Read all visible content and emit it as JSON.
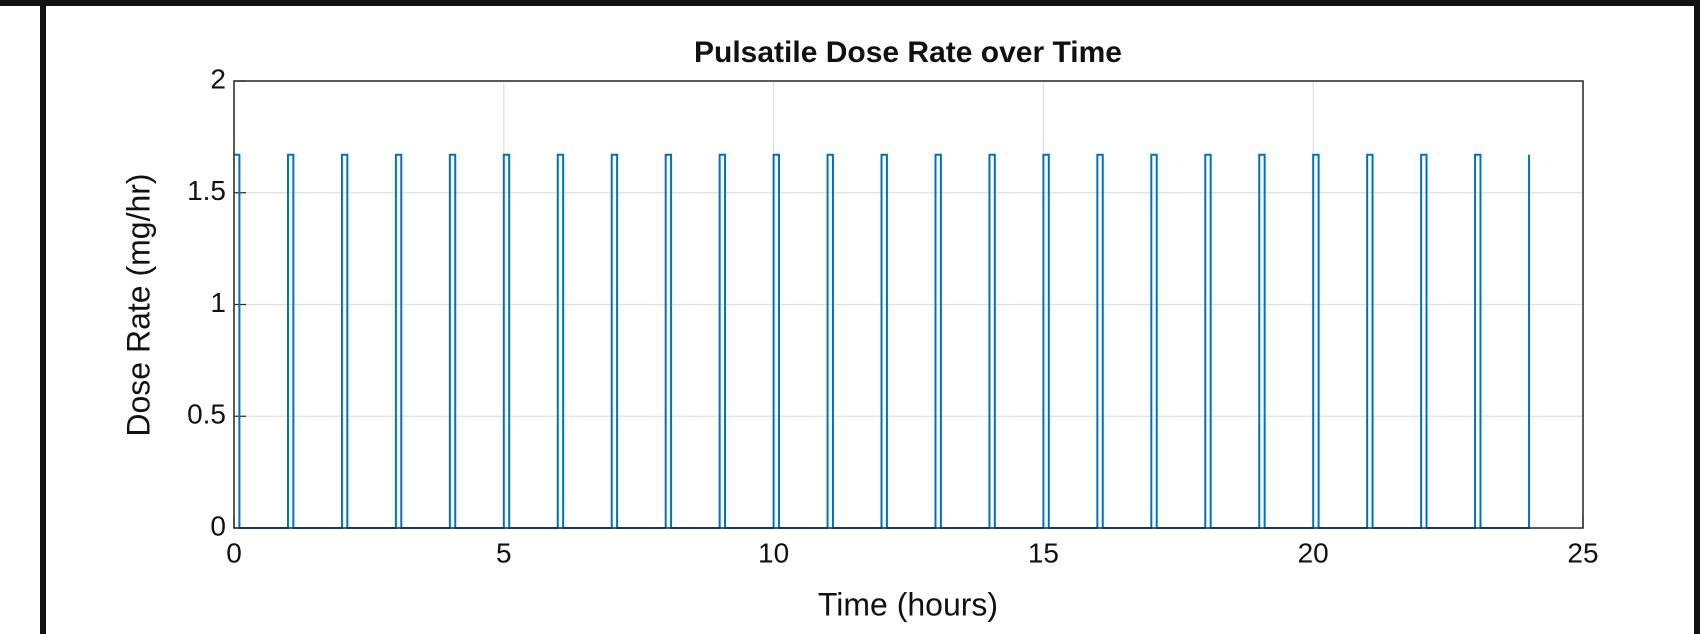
{
  "chart_data": {
    "type": "line",
    "title": "Pulsatile Dose Rate over Time",
    "xlabel": "Time (hours)",
    "ylabel": "Dose Rate (mg/hr)",
    "x": [
      0,
      0.1,
      0.1,
      1,
      1,
      1.1,
      1.1,
      2,
      2,
      2.1,
      2.1,
      3,
      3,
      3.1,
      3.1,
      4,
      4,
      4.1,
      4.1,
      5,
      5,
      5.1,
      5.1,
      6,
      6,
      6.1,
      6.1,
      7,
      7,
      7.1,
      7.1,
      8,
      8,
      8.1,
      8.1,
      9,
      9,
      9.1,
      9.1,
      10,
      10,
      10.1,
      10.1,
      11,
      11,
      11.1,
      11.1,
      12,
      12,
      12.1,
      12.1,
      13,
      13,
      13.1,
      13.1,
      14,
      14,
      14.1,
      14.1,
      15,
      15,
      15.1,
      15.1,
      16,
      16,
      16.1,
      16.1,
      17,
      17,
      17.1,
      17.1,
      18,
      18,
      18.1,
      18.1,
      19,
      19,
      19.1,
      19.1,
      20,
      20,
      20.1,
      20.1,
      21,
      21,
      21.1,
      21.1,
      22,
      22,
      22.1,
      22.1,
      23,
      23,
      23.1,
      23.1,
      24,
      24
    ],
    "series": [
      {
        "color": "#0072bd",
        "values": [
          1.67,
          1.67,
          0,
          0,
          1.67,
          1.67,
          0,
          0,
          1.67,
          1.67,
          0,
          0,
          1.67,
          1.67,
          0,
          0,
          1.67,
          1.67,
          0,
          0,
          1.67,
          1.67,
          0,
          0,
          1.67,
          1.67,
          0,
          0,
          1.67,
          1.67,
          0,
          0,
          1.67,
          1.67,
          0,
          0,
          1.67,
          1.67,
          0,
          0,
          1.67,
          1.67,
          0,
          0,
          1.67,
          1.67,
          0,
          0,
          1.67,
          1.67,
          0,
          0,
          1.67,
          1.67,
          0,
          0,
          1.67,
          1.67,
          0,
          0,
          1.67,
          1.67,
          0,
          0,
          1.67,
          1.67,
          0,
          0,
          1.67,
          1.67,
          0,
          0,
          1.67,
          1.67,
          0,
          0,
          1.67,
          1.67,
          0,
          0,
          1.67,
          1.67,
          0,
          0,
          1.67,
          1.67,
          0,
          0,
          1.67,
          1.67,
          0,
          0,
          1.67,
          1.67,
          0,
          0,
          1.67
        ]
      }
    ],
    "xlim": [
      0,
      25
    ],
    "xticks": [
      0,
      5,
      10,
      15,
      20,
      25
    ],
    "ylim": [
      0,
      2
    ],
    "yticks": [
      0,
      0.5,
      1,
      1.5,
      2
    ],
    "grid": true
  }
}
